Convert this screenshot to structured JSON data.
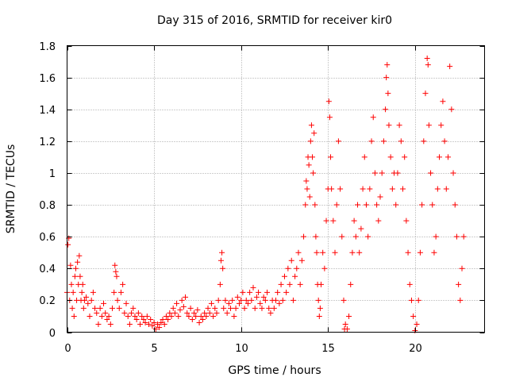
{
  "chart_data": {
    "type": "scatter",
    "title": "Day 315 of 2016, SRMTID for receiver kir0",
    "xlabel": "GPS time / hours",
    "ylabel": "SRMTID / TECUs",
    "xlim": [
      0,
      24
    ],
    "ylim": [
      0,
      1.8
    ],
    "xticks": [
      0,
      5,
      10,
      15,
      20
    ],
    "xtick_labels": [
      "0",
      "5",
      "10",
      "15",
      "20"
    ],
    "yticks": [
      0,
      0.2,
      0.4,
      0.6,
      0.8,
      1,
      1.2,
      1.4,
      1.6,
      1.8
    ],
    "ytick_labels": [
      "0",
      "0.2",
      "0.4",
      "0.6",
      "0.8",
      "1",
      "1.2",
      "1.4",
      "1.6",
      "1.8"
    ],
    "grid": true,
    "marker": "+",
    "color": "#ff0000",
    "series": [
      {
        "name": "kir0",
        "points": [
          [
            0.0,
            0.25
          ],
          [
            0.05,
            0.55
          ],
          [
            0.1,
            0.59
          ],
          [
            0.15,
            0.2
          ],
          [
            0.2,
            0.42
          ],
          [
            0.25,
            0.3
          ],
          [
            0.3,
            0.15
          ],
          [
            0.35,
            0.25
          ],
          [
            0.4,
            0.1
          ],
          [
            0.45,
            0.35
          ],
          [
            0.5,
            0.4
          ],
          [
            0.55,
            0.2
          ],
          [
            0.6,
            0.44
          ],
          [
            0.65,
            0.3
          ],
          [
            0.7,
            0.48
          ],
          [
            0.75,
            0.35
          ],
          [
            0.8,
            0.2
          ],
          [
            0.85,
            0.25
          ],
          [
            0.9,
            0.3
          ],
          [
            0.95,
            0.15
          ],
          [
            1.0,
            0.2
          ],
          [
            1.1,
            0.22
          ],
          [
            1.2,
            0.18
          ],
          [
            1.3,
            0.1
          ],
          [
            1.4,
            0.2
          ],
          [
            1.5,
            0.25
          ],
          [
            1.6,
            0.15
          ],
          [
            1.7,
            0.12
          ],
          [
            1.8,
            0.05
          ],
          [
            1.9,
            0.15
          ],
          [
            2.0,
            0.1
          ],
          [
            2.1,
            0.18
          ],
          [
            2.2,
            0.12
          ],
          [
            2.3,
            0.08
          ],
          [
            2.4,
            0.1
          ],
          [
            2.5,
            0.05
          ],
          [
            2.6,
            0.15
          ],
          [
            2.7,
            0.25
          ],
          [
            2.75,
            0.42
          ],
          [
            2.8,
            0.38
          ],
          [
            2.85,
            0.35
          ],
          [
            2.9,
            0.2
          ],
          [
            3.0,
            0.15
          ],
          [
            3.1,
            0.25
          ],
          [
            3.2,
            0.3
          ],
          [
            3.3,
            0.12
          ],
          [
            3.4,
            0.18
          ],
          [
            3.5,
            0.1
          ],
          [
            3.6,
            0.05
          ],
          [
            3.7,
            0.12
          ],
          [
            3.8,
            0.15
          ],
          [
            3.9,
            0.1
          ],
          [
            4.0,
            0.08
          ],
          [
            4.1,
            0.12
          ],
          [
            4.2,
            0.05
          ],
          [
            4.3,
            0.1
          ],
          [
            4.4,
            0.08
          ],
          [
            4.5,
            0.06
          ],
          [
            4.6,
            0.1
          ],
          [
            4.7,
            0.05
          ],
          [
            4.8,
            0.08
          ],
          [
            4.9,
            0.04
          ],
          [
            5.0,
            0.06
          ],
          [
            5.1,
            0.02
          ],
          [
            5.2,
            0.05
          ],
          [
            5.3,
            0.03
          ],
          [
            5.4,
            0.06
          ],
          [
            5.5,
            0.08
          ],
          [
            5.6,
            0.05
          ],
          [
            5.7,
            0.1
          ],
          [
            5.8,
            0.08
          ],
          [
            5.9,
            0.12
          ],
          [
            6.0,
            0.1
          ],
          [
            6.1,
            0.15
          ],
          [
            6.2,
            0.12
          ],
          [
            6.3,
            0.18
          ],
          [
            6.4,
            0.1
          ],
          [
            6.5,
            0.14
          ],
          [
            6.6,
            0.2
          ],
          [
            6.7,
            0.16
          ],
          [
            6.8,
            0.22
          ],
          [
            6.9,
            0.12
          ],
          [
            7.0,
            0.1
          ],
          [
            7.1,
            0.15
          ],
          [
            7.2,
            0.08
          ],
          [
            7.3,
            0.12
          ],
          [
            7.4,
            0.1
          ],
          [
            7.5,
            0.14
          ],
          [
            7.6,
            0.06
          ],
          [
            7.7,
            0.1
          ],
          [
            7.8,
            0.08
          ],
          [
            7.9,
            0.12
          ],
          [
            8.0,
            0.1
          ],
          [
            8.1,
            0.15
          ],
          [
            8.2,
            0.12
          ],
          [
            8.3,
            0.18
          ],
          [
            8.4,
            0.1
          ],
          [
            8.5,
            0.15
          ],
          [
            8.6,
            0.12
          ],
          [
            8.7,
            0.2
          ],
          [
            8.8,
            0.3
          ],
          [
            8.85,
            0.45
          ],
          [
            8.9,
            0.5
          ],
          [
            8.95,
            0.4
          ],
          [
            9.0,
            0.15
          ],
          [
            9.1,
            0.2
          ],
          [
            9.2,
            0.12
          ],
          [
            9.3,
            0.18
          ],
          [
            9.4,
            0.15
          ],
          [
            9.5,
            0.2
          ],
          [
            9.6,
            0.1
          ],
          [
            9.7,
            0.15
          ],
          [
            9.8,
            0.22
          ],
          [
            9.9,
            0.18
          ],
          [
            10.0,
            0.2
          ],
          [
            10.1,
            0.25
          ],
          [
            10.2,
            0.15
          ],
          [
            10.3,
            0.2
          ],
          [
            10.4,
            0.18
          ],
          [
            10.5,
            0.25
          ],
          [
            10.6,
            0.2
          ],
          [
            10.7,
            0.28
          ],
          [
            10.8,
            0.15
          ],
          [
            10.9,
            0.22
          ],
          [
            11.0,
            0.25
          ],
          [
            11.1,
            0.18
          ],
          [
            11.2,
            0.15
          ],
          [
            11.3,
            0.22
          ],
          [
            11.4,
            0.2
          ],
          [
            11.5,
            0.25
          ],
          [
            11.6,
            0.15
          ],
          [
            11.7,
            0.12
          ],
          [
            11.8,
            0.2
          ],
          [
            11.9,
            0.15
          ],
          [
            12.0,
            0.2
          ],
          [
            12.1,
            0.25
          ],
          [
            12.2,
            0.18
          ],
          [
            12.3,
            0.3
          ],
          [
            12.4,
            0.2
          ],
          [
            12.5,
            0.35
          ],
          [
            12.6,
            0.25
          ],
          [
            12.7,
            0.4
          ],
          [
            12.8,
            0.3
          ],
          [
            12.9,
            0.45
          ],
          [
            13.0,
            0.2
          ],
          [
            13.1,
            0.35
          ],
          [
            13.2,
            0.4
          ],
          [
            13.3,
            0.5
          ],
          [
            13.4,
            0.3
          ],
          [
            13.5,
            0.45
          ],
          [
            13.6,
            0.6
          ],
          [
            13.7,
            0.8
          ],
          [
            13.75,
            0.95
          ],
          [
            13.8,
            0.9
          ],
          [
            13.85,
            1.1
          ],
          [
            13.9,
            1.05
          ],
          [
            13.95,
            0.85
          ],
          [
            14.0,
            1.2
          ],
          [
            14.05,
            1.3
          ],
          [
            14.1,
            1.1
          ],
          [
            14.15,
            1.0
          ],
          [
            14.2,
            1.25
          ],
          [
            14.25,
            0.8
          ],
          [
            14.3,
            0.6
          ],
          [
            14.35,
            0.5
          ],
          [
            14.4,
            0.3
          ],
          [
            14.45,
            0.2
          ],
          [
            14.5,
            0.1
          ],
          [
            14.55,
            0.15
          ],
          [
            14.6,
            0.3
          ],
          [
            14.7,
            0.5
          ],
          [
            14.8,
            0.4
          ],
          [
            14.9,
            0.7
          ],
          [
            15.0,
            0.9
          ],
          [
            15.05,
            1.45
          ],
          [
            15.1,
            1.35
          ],
          [
            15.15,
            1.1
          ],
          [
            15.2,
            0.9
          ],
          [
            15.3,
            0.7
          ],
          [
            15.4,
            0.5
          ],
          [
            15.5,
            0.8
          ],
          [
            15.6,
            1.2
          ],
          [
            15.7,
            0.9
          ],
          [
            15.8,
            0.6
          ],
          [
            15.9,
            0.2
          ],
          [
            15.95,
            0.02
          ],
          [
            16.0,
            0.05
          ],
          [
            16.1,
            0.02
          ],
          [
            16.2,
            0.1
          ],
          [
            16.3,
            0.3
          ],
          [
            16.4,
            0.5
          ],
          [
            16.5,
            0.7
          ],
          [
            16.6,
            0.6
          ],
          [
            16.7,
            0.8
          ],
          [
            16.8,
            0.5
          ],
          [
            16.9,
            0.65
          ],
          [
            17.0,
            0.9
          ],
          [
            17.1,
            1.1
          ],
          [
            17.2,
            0.8
          ],
          [
            17.3,
            0.6
          ],
          [
            17.4,
            0.9
          ],
          [
            17.5,
            1.2
          ],
          [
            17.6,
            1.35
          ],
          [
            17.7,
            1.0
          ],
          [
            17.8,
            0.8
          ],
          [
            17.9,
            0.7
          ],
          [
            18.0,
            0.85
          ],
          [
            18.1,
            1.0
          ],
          [
            18.2,
            1.2
          ],
          [
            18.3,
            1.4
          ],
          [
            18.35,
            1.6
          ],
          [
            18.4,
            1.68
          ],
          [
            18.45,
            1.5
          ],
          [
            18.5,
            1.3
          ],
          [
            18.6,
            1.1
          ],
          [
            18.7,
            0.9
          ],
          [
            18.8,
            1.0
          ],
          [
            18.9,
            0.8
          ],
          [
            19.0,
            1.0
          ],
          [
            19.1,
            1.3
          ],
          [
            19.2,
            1.2
          ],
          [
            19.3,
            0.9
          ],
          [
            19.4,
            1.1
          ],
          [
            19.5,
            0.7
          ],
          [
            19.6,
            0.5
          ],
          [
            19.7,
            0.3
          ],
          [
            19.8,
            0.2
          ],
          [
            19.9,
            0.1
          ],
          [
            20.0,
            0.01
          ],
          [
            20.1,
            0.05
          ],
          [
            20.2,
            0.2
          ],
          [
            20.3,
            0.5
          ],
          [
            20.4,
            0.8
          ],
          [
            20.5,
            1.2
          ],
          [
            20.6,
            1.5
          ],
          [
            20.7,
            1.72
          ],
          [
            20.75,
            1.68
          ],
          [
            20.8,
            1.3
          ],
          [
            20.9,
            1.0
          ],
          [
            21.0,
            0.8
          ],
          [
            21.1,
            0.5
          ],
          [
            21.2,
            0.6
          ],
          [
            21.3,
            0.9
          ],
          [
            21.4,
            1.1
          ],
          [
            21.5,
            1.3
          ],
          [
            21.6,
            1.45
          ],
          [
            21.7,
            1.2
          ],
          [
            21.8,
            0.9
          ],
          [
            21.9,
            1.1
          ],
          [
            22.0,
            1.67
          ],
          [
            22.1,
            1.4
          ],
          [
            22.2,
            1.0
          ],
          [
            22.3,
            0.8
          ],
          [
            22.4,
            0.6
          ],
          [
            22.5,
            0.3
          ],
          [
            22.6,
            0.2
          ],
          [
            22.7,
            0.4
          ],
          [
            22.8,
            0.6
          ]
        ]
      }
    ]
  }
}
